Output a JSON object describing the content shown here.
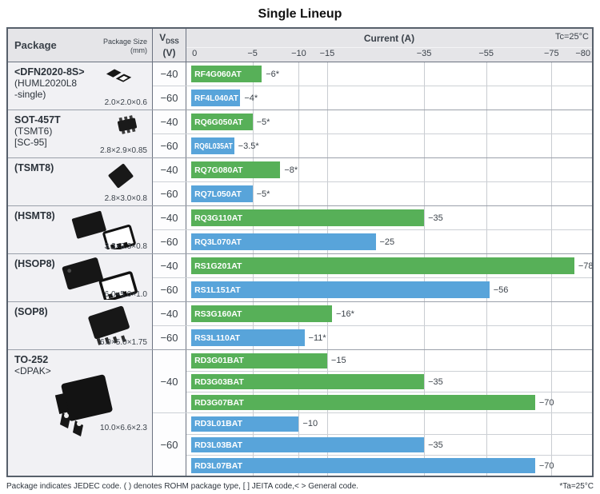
{
  "title": "Single Lineup",
  "table": {
    "package_header": "Package",
    "package_size_header": "Package Size",
    "package_size_unit": "(mm)",
    "vdss_v": "V",
    "vdss_sub": "DSS",
    "vdss_unit": "(V)",
    "current_header": "Current (A)",
    "tc_note": "Tc=25°C"
  },
  "footer": {
    "left": "Package indicates JEDEC code. ( ) denotes ROHM package type, [ ] JEITA code,< > General code.",
    "right": "*Ta=25°C"
  },
  "colors": {
    "bar_green": "#57b058",
    "bar_blue": "#58a4da",
    "header_bg": "#e5e5e8",
    "package_bg": "#f1f1f4"
  },
  "chart_data": {
    "type": "bar",
    "orientation": "horizontal",
    "title": "Single Lineup",
    "xlabel": "Current (A)",
    "condition": "Tc=25°C",
    "starred_condition": "*Ta=25°C",
    "axis_note": "non-linear axis: ticks 0,-5,-10,-15,-35,-55,-75,-80",
    "ticks": [
      {
        "label": "0",
        "value": 0
      },
      {
        "label": "−5",
        "value": -5
      },
      {
        "label": "−10",
        "value": -10
      },
      {
        "label": "−15",
        "value": -15
      },
      {
        "label": "−35",
        "value": -35
      },
      {
        "label": "−55",
        "value": -55
      },
      {
        "label": "−75",
        "value": -75
      },
      {
        "label": "−80",
        "value": -80
      }
    ],
    "scale_anchors": [
      [
        0,
        0.012
      ],
      [
        5,
        0.163
      ],
      [
        10,
        0.277
      ],
      [
        15,
        0.347
      ],
      [
        35,
        0.586
      ],
      [
        55,
        0.739
      ],
      [
        75,
        0.9
      ],
      [
        80,
        0.994
      ]
    ],
    "legend": {
      "green": "VDSS −40 V",
      "blue": "VDSS −60 V"
    },
    "groups": [
      {
        "package": {
          "lines": [
            {
              "text": "<DFN2020-8S>",
              "bold": true
            },
            {
              "text": "(HUML2020L8"
            },
            {
              "text": " -single)"
            }
          ],
          "size": "2.0×2.0×0.6",
          "icon": "dfn2020"
        },
        "rows": [
          {
            "vdss": "−40",
            "color": "green",
            "parts": [
              {
                "name": "RF4G060AT",
                "current": -6,
                "label": "−6*"
              }
            ]
          },
          {
            "vdss": "−60",
            "color": "blue",
            "parts": [
              {
                "name": "RF4L040AT",
                "current": -4,
                "label": "−4*"
              }
            ]
          }
        ]
      },
      {
        "package": {
          "lines": [
            {
              "text": "SOT-457T",
              "bold": true
            },
            {
              "text": "(TSMT6)"
            },
            {
              "text": "[SC-95]"
            }
          ],
          "size": "2.8×2.9×0.85",
          "icon": "sot457t"
        },
        "rows": [
          {
            "vdss": "−40",
            "color": "green",
            "parts": [
              {
                "name": "RQ6G050AT",
                "current": -5,
                "label": "−5*"
              }
            ]
          },
          {
            "vdss": "−60",
            "color": "blue",
            "parts": [
              {
                "name": "RQ6L035AT",
                "current": -3.5,
                "label": "−3.5*"
              }
            ]
          }
        ]
      },
      {
        "package": {
          "lines": [
            {
              "text": "(TSMT8)",
              "bold": true
            }
          ],
          "size": "2.8×3.0×0.8",
          "icon": "tsmt8"
        },
        "rows": [
          {
            "vdss": "−40",
            "color": "green",
            "parts": [
              {
                "name": "RQ7G080AT",
                "current": -8,
                "label": "−8*"
              }
            ]
          },
          {
            "vdss": "−60",
            "color": "blue",
            "parts": [
              {
                "name": "RQ7L050AT",
                "current": -5,
                "label": "−5*"
              }
            ]
          }
        ]
      },
      {
        "package": {
          "lines": [
            {
              "text": "(HSMT8)",
              "bold": true
            }
          ],
          "size": "3.3×3.3×0.8",
          "icon": "hsmt8"
        },
        "rows": [
          {
            "vdss": "−40",
            "color": "green",
            "parts": [
              {
                "name": "RQ3G110AT",
                "current": -35,
                "label": "−35"
              }
            ]
          },
          {
            "vdss": "−60",
            "color": "blue",
            "parts": [
              {
                "name": "RQ3L070AT",
                "current": -25,
                "label": "−25"
              }
            ]
          }
        ]
      },
      {
        "package": {
          "lines": [
            {
              "text": "(HSOP8)",
              "bold": true
            }
          ],
          "size": "6.0×5.0×1.0",
          "icon": "hsop8"
        },
        "rows": [
          {
            "vdss": "−40",
            "color": "green",
            "parts": [
              {
                "name": "RS1G201AT",
                "current": -78,
                "label": "−78"
              }
            ]
          },
          {
            "vdss": "−60",
            "color": "blue",
            "parts": [
              {
                "name": "RS1L151AT",
                "current": -56,
                "label": "−56"
              }
            ]
          }
        ]
      },
      {
        "package": {
          "lines": [
            {
              "text": "(SOP8)",
              "bold": true
            }
          ],
          "size": "6.0×5.0×1.75",
          "icon": "sop8"
        },
        "rows": [
          {
            "vdss": "−40",
            "color": "green",
            "parts": [
              {
                "name": "RS3G160AT",
                "current": -16,
                "label": "−16*"
              }
            ]
          },
          {
            "vdss": "−60",
            "color": "blue",
            "parts": [
              {
                "name": "RS3L110AT",
                "current": -11,
                "label": "−11*"
              }
            ]
          }
        ]
      },
      {
        "package": {
          "lines": [
            {
              "text": "TO-252",
              "bold": true
            },
            {
              "text": "<DPAK>"
            }
          ],
          "size": "10.0×6.6×2.3",
          "icon": "to252"
        },
        "rows": [
          {
            "vdss": "−40",
            "color": "green",
            "parts": [
              {
                "name": "RD3G01BAT",
                "current": -15,
                "label": "−15"
              },
              {
                "name": "RD3G03BAT",
                "current": -35,
                "label": "−35"
              },
              {
                "name": "RD3G07BAT",
                "current": -70,
                "label": "−70"
              }
            ]
          },
          {
            "vdss": "−60",
            "color": "blue",
            "parts": [
              {
                "name": "RD3L01BAT",
                "current": -10,
                "label": "−10"
              },
              {
                "name": "RD3L03BAT",
                "current": -35,
                "label": "−35"
              },
              {
                "name": "RD3L07BAT",
                "current": -70,
                "label": "−70"
              }
            ]
          }
        ]
      }
    ]
  }
}
